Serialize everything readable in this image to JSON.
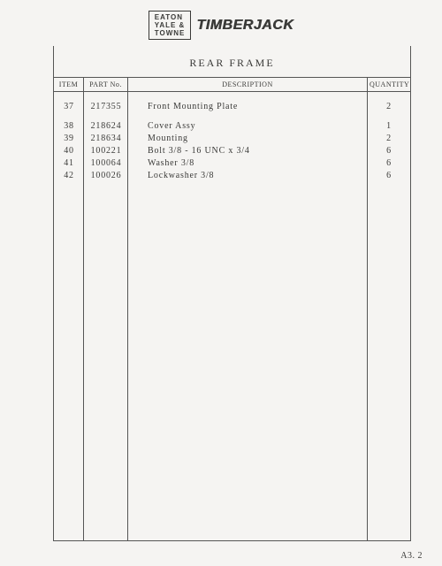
{
  "logo": {
    "line1": "EATON",
    "line2": "YALE &",
    "line3": "TOWNE"
  },
  "brand": "TIMBERJACK",
  "title": "REAR FRAME",
  "headers": {
    "item": "ITEM",
    "part": "PART No.",
    "desc": "DESCRIPTION",
    "qty": "QUANTITY"
  },
  "rows": [
    {
      "item": "37",
      "part": "217355",
      "desc": "Front Mounting Plate",
      "qty": "2",
      "gap": false
    },
    {
      "item": "38",
      "part": "218624",
      "desc": "Cover Assy",
      "qty": "1",
      "gap": true
    },
    {
      "item": "39",
      "part": "218634",
      "desc": "Mounting",
      "qty": "2",
      "gap": false
    },
    {
      "item": "40",
      "part": "100221",
      "desc": "Bolt 3/8 - 16 UNC x 3/4",
      "qty": "6",
      "gap": false
    },
    {
      "item": "41",
      "part": "100064",
      "desc": "Washer 3/8",
      "qty": "6",
      "gap": false
    },
    {
      "item": "42",
      "part": "100026",
      "desc": "Lockwasher 3/8",
      "qty": "6",
      "gap": false
    }
  ],
  "pagenum": "A3. 2"
}
